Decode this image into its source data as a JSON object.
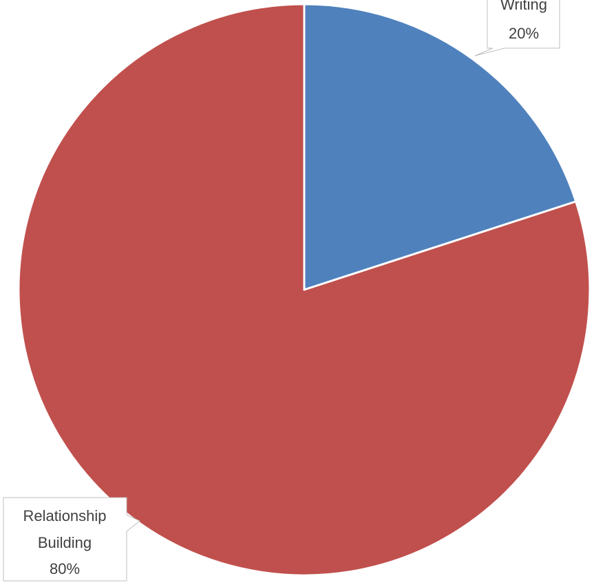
{
  "chart_data": {
    "type": "pie",
    "title": "",
    "slices": [
      {
        "label": "Writing",
        "value": 20,
        "percent_label": "20%",
        "color": "#4f81bd"
      },
      {
        "label": "Relationship Building",
        "value": 80,
        "percent_label": "80%",
        "color": "#c0504d"
      }
    ],
    "label_lines": [
      [
        "Writing",
        "20%"
      ],
      [
        "Relationship",
        "Building",
        "80%"
      ]
    ],
    "legend": "none",
    "start_angle": "12 o'clock",
    "direction": "clockwise"
  }
}
